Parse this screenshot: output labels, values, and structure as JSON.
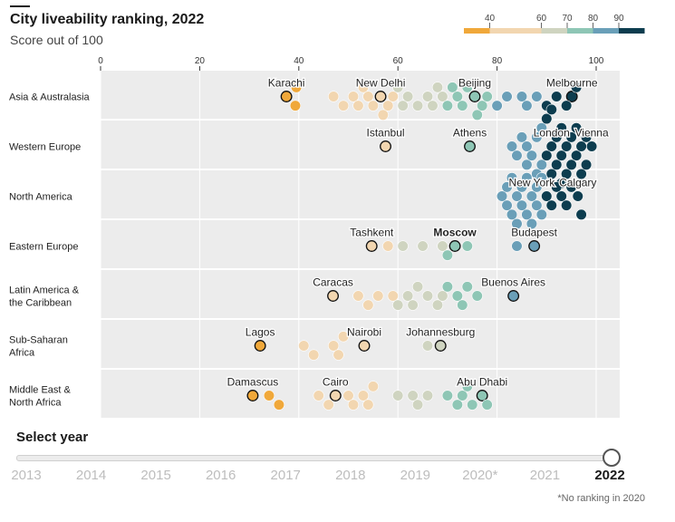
{
  "title": "City liveability ranking, 2022",
  "subtitle": "Score out of 100",
  "colors": {
    "c30": "#f0a83a",
    "c40": "#f2d6b0",
    "c60": "#cfd4c0",
    "c70": "#8ec6b5",
    "c80": "#6a9fb8",
    "c90": "#0d3d4f",
    "panel": "#ececec"
  },
  "legend": {
    "ticks": [
      "40",
      "60",
      "70",
      "80",
      "90"
    ],
    "bins": [
      {
        "from": 30,
        "to": 40,
        "color": "#f0a83a"
      },
      {
        "from": 40,
        "to": 60,
        "color": "#f2d6b0"
      },
      {
        "from": 60,
        "to": 70,
        "color": "#cfd4c0"
      },
      {
        "from": 70,
        "to": 80,
        "color": "#8ec6b5"
      },
      {
        "from": 80,
        "to": 90,
        "color": "#6a9fb8"
      },
      {
        "from": 90,
        "to": 100,
        "color": "#0d3d4f"
      }
    ]
  },
  "chart_data": {
    "type": "scatter",
    "title": "City liveability ranking, 2022",
    "subtitle": "Score out of 100",
    "x_ticks": [
      0,
      20,
      40,
      60,
      80,
      100
    ],
    "xlim": [
      0,
      105
    ],
    "regions": [
      {
        "name": "Asia & Australasia",
        "label_lines": [
          "Asia & Australasia"
        ],
        "cities": [
          {
            "name": "Karachi",
            "score": 37.5,
            "highlight": true,
            "bold": false
          },
          {
            "name": "New Delhi",
            "score": 56.5,
            "highlight": true,
            "bold": false
          },
          {
            "name": "Beijing",
            "score": 75.5,
            "highlight": true,
            "bold": false
          },
          {
            "name": "Melbourne",
            "score": 95.1,
            "highlight": true,
            "bold": false
          }
        ],
        "others": [
          39.5,
          39.3,
          47,
          49,
          51,
          52,
          53,
          54,
          55,
          57,
          58,
          59,
          60,
          61,
          62,
          64,
          66,
          67,
          68,
          69,
          70,
          71,
          72,
          73,
          74,
          76,
          77,
          78,
          80,
          82,
          85,
          86,
          88,
          90,
          92,
          94,
          96
        ]
      },
      {
        "name": "Western Europe",
        "label_lines": [
          "Western Europe"
        ],
        "cities": [
          {
            "name": "Istanbul",
            "score": 57.5,
            "highlight": true,
            "bold": false
          },
          {
            "name": "Athens",
            "score": 74.5,
            "highlight": true,
            "bold": false
          },
          {
            "name": "Vienna",
            "score": 99.1,
            "highlight": false,
            "bold": false
          },
          {
            "name": "London",
            "score": 91,
            "highlight": false,
            "bold": false
          }
        ],
        "others": [
          83,
          84,
          85,
          86,
          86,
          87,
          88,
          88,
          89,
          89,
          90,
          90,
          91,
          91,
          92,
          92,
          93,
          93,
          93,
          94,
          94,
          95,
          95,
          96,
          96,
          97,
          97,
          98,
          98
        ]
      },
      {
        "name": "North America",
        "label_lines": [
          "North America"
        ],
        "cities": [
          {
            "name": "New York",
            "score": 87,
            "highlight": false,
            "bold": false
          },
          {
            "name": "Calgary",
            "score": 96.3,
            "highlight": false,
            "bold": false
          }
        ],
        "others": [
          81,
          82,
          82,
          83,
          83,
          84,
          84,
          85,
          85,
          86,
          86,
          87,
          88,
          88,
          89,
          89,
          90,
          91,
          92,
          93,
          94,
          95,
          97
        ]
      },
      {
        "name": "Eastern Europe",
        "label_lines": [
          "Eastern Europe"
        ],
        "cities": [
          {
            "name": "Tashkent",
            "score": 54.7,
            "highlight": true,
            "bold": false
          },
          {
            "name": "Moscow",
            "score": 71.5,
            "highlight": true,
            "bold": true
          },
          {
            "name": "Budapest",
            "score": 87.5,
            "highlight": true,
            "bold": false
          }
        ],
        "others": [
          58,
          61,
          65,
          69,
          70,
          74,
          84
        ]
      },
      {
        "name": "Latin America & the Caribbean",
        "label_lines": [
          "Latin America &",
          "the Caribbean"
        ],
        "cities": [
          {
            "name": "Caracas",
            "score": 46.9,
            "highlight": true,
            "bold": false
          },
          {
            "name": "Buenos Aires",
            "score": 83.3,
            "highlight": true,
            "bold": false
          }
        ],
        "others": [
          52,
          54,
          56,
          59,
          60,
          62,
          63,
          64,
          66,
          68,
          69,
          70,
          72,
          73,
          74,
          76
        ]
      },
      {
        "name": "Sub-Saharan Africa",
        "label_lines": [
          "Sub-Saharan",
          "Africa"
        ],
        "cities": [
          {
            "name": "Lagos",
            "score": 32.2,
            "highlight": true,
            "bold": false
          },
          {
            "name": "Nairobi",
            "score": 53.2,
            "highlight": true,
            "bold": false
          },
          {
            "name": "Johannesburg",
            "score": 68.6,
            "highlight": true,
            "bold": false
          }
        ],
        "others": [
          41,
          43,
          47,
          48,
          49,
          66
        ]
      },
      {
        "name": "Middle East & North Africa",
        "label_lines": [
          "Middle East &",
          "North Africa"
        ],
        "cities": [
          {
            "name": "Damascus",
            "score": 30.7,
            "highlight": true,
            "bold": false
          },
          {
            "name": "Cairo",
            "score": 47.4,
            "highlight": true,
            "bold": false
          },
          {
            "name": "Abu Dhabi",
            "score": 77.0,
            "highlight": true,
            "bold": false
          }
        ],
        "others": [
          34,
          36,
          44,
          46,
          50,
          51,
          53,
          54,
          55,
          60,
          63,
          64,
          66,
          70,
          72,
          73,
          74,
          75,
          78
        ]
      }
    ]
  },
  "slider": {
    "label": "Select year",
    "years": [
      "2013",
      "2014",
      "2015",
      "2016",
      "2017",
      "2018",
      "2019",
      "2020*",
      "2021",
      "2022"
    ],
    "selected": "2022",
    "value_index": 9
  },
  "footnote": "*No ranking in 2020"
}
